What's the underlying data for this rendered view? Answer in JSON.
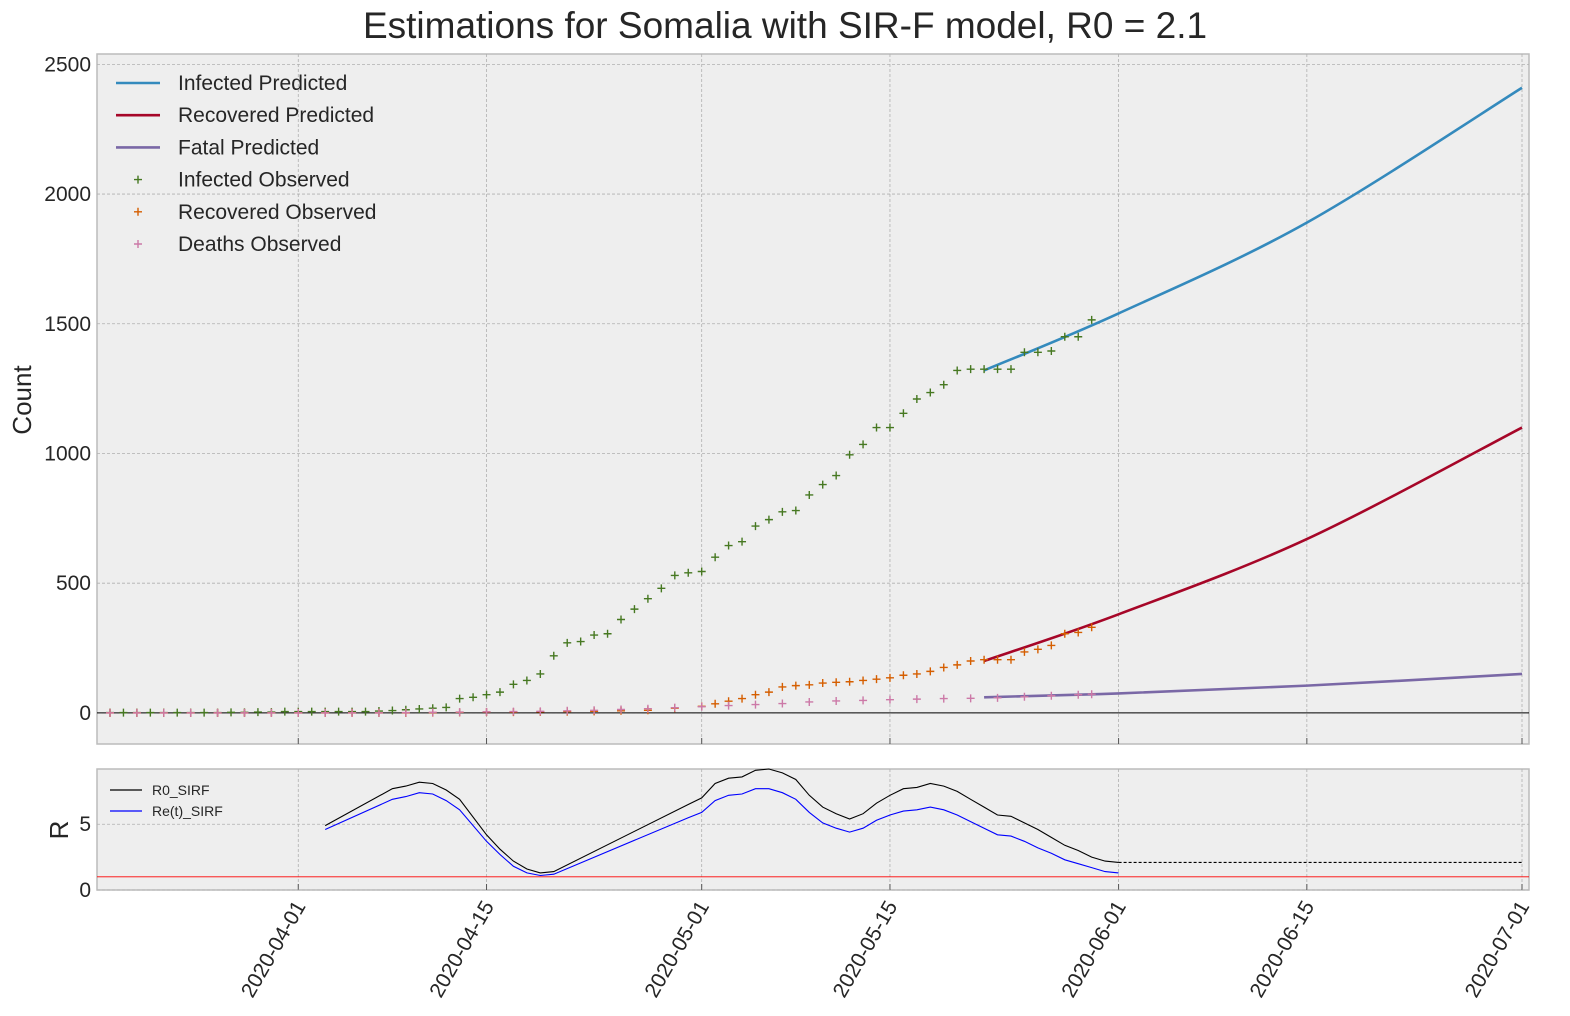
{
  "chart_data": [
    {
      "type": "line",
      "title": "Estimations for Somalia with SIR-F model, R0 = 2.1",
      "xlabel": "",
      "ylabel": "Count",
      "x_ticks": [
        "2020-04-01",
        "2020-04-15",
        "2020-05-01",
        "2020-05-15",
        "2020-06-01",
        "2020-06-15",
        "2020-07-01"
      ],
      "y_ticks": [
        "0",
        "500",
        "1000",
        "1500",
        "2000",
        "2500"
      ],
      "xlim": [
        "2020-03-18",
        "2020-07-01"
      ],
      "ylim": [
        -120,
        2540
      ],
      "grid": true,
      "legend_position": "top-left",
      "series": [
        {
          "name": "Infected Predicted",
          "kind": "line",
          "color": "#348abd",
          "x": [
            "2020-05-22",
            "2020-06-01",
            "2020-06-15",
            "2020-07-01"
          ],
          "values": [
            1320,
            1540,
            1890,
            2410
          ]
        },
        {
          "name": "Recovered Predicted",
          "kind": "line",
          "color": "#a60628",
          "x": [
            "2020-05-22",
            "2020-06-01",
            "2020-06-15",
            "2020-07-01"
          ],
          "values": [
            200,
            380,
            670,
            1100
          ]
        },
        {
          "name": "Fatal Predicted",
          "kind": "line",
          "color": "#7a68a6",
          "x": [
            "2020-05-22",
            "2020-06-01",
            "2020-06-15",
            "2020-07-01"
          ],
          "values": [
            60,
            75,
            105,
            150
          ]
        },
        {
          "name": "Infected Observed",
          "kind": "scatter",
          "color": "#467821",
          "x": [
            "2020-03-18",
            "2020-03-19",
            "2020-03-20",
            "2020-03-21",
            "2020-03-22",
            "2020-03-23",
            "2020-03-24",
            "2020-03-25",
            "2020-03-26",
            "2020-03-27",
            "2020-03-28",
            "2020-03-29",
            "2020-03-30",
            "2020-03-31",
            "2020-04-01",
            "2020-04-02",
            "2020-04-03",
            "2020-04-04",
            "2020-04-05",
            "2020-04-06",
            "2020-04-07",
            "2020-04-08",
            "2020-04-09",
            "2020-04-10",
            "2020-04-11",
            "2020-04-12",
            "2020-04-13",
            "2020-04-14",
            "2020-04-15",
            "2020-04-16",
            "2020-04-17",
            "2020-04-18",
            "2020-04-19",
            "2020-04-20",
            "2020-04-21",
            "2020-04-22",
            "2020-04-23",
            "2020-04-24",
            "2020-04-25",
            "2020-04-26",
            "2020-04-27",
            "2020-04-28",
            "2020-04-29",
            "2020-04-30",
            "2020-05-01",
            "2020-05-02",
            "2020-05-03",
            "2020-05-04",
            "2020-05-05",
            "2020-05-06",
            "2020-05-07",
            "2020-05-08",
            "2020-05-09",
            "2020-05-10",
            "2020-05-11",
            "2020-05-12",
            "2020-05-13",
            "2020-05-14",
            "2020-05-15",
            "2020-05-16",
            "2020-05-17",
            "2020-05-18",
            "2020-05-19",
            "2020-05-20",
            "2020-05-21",
            "2020-05-22",
            "2020-05-23",
            "2020-05-24",
            "2020-05-25",
            "2020-05-26",
            "2020-05-27",
            "2020-05-28",
            "2020-05-29",
            "2020-05-30"
          ],
          "values": [
            1,
            1,
            1,
            1,
            1,
            1,
            1,
            1,
            1,
            2,
            2,
            3,
            3,
            5,
            5,
            5,
            5,
            5,
            5,
            5,
            7,
            9,
            12,
            15,
            18,
            21,
            55,
            60,
            70,
            80,
            110,
            125,
            150,
            220,
            270,
            275,
            300,
            305,
            360,
            400,
            440,
            480,
            530,
            540,
            545,
            600,
            645,
            660,
            720,
            745,
            775,
            780,
            840,
            880,
            915,
            995,
            1035,
            1100,
            1100,
            1155,
            1210,
            1235,
            1265,
            1320,
            1325,
            1325,
            1325,
            1325,
            1390,
            1390,
            1395,
            1450,
            1450,
            1515
          ]
        },
        {
          "name": "Recovered Observed",
          "kind": "scatter",
          "color": "#d55e00",
          "x": [
            "2020-03-18",
            "2020-03-20",
            "2020-03-22",
            "2020-03-24",
            "2020-03-26",
            "2020-03-28",
            "2020-03-30",
            "2020-04-01",
            "2020-04-03",
            "2020-04-05",
            "2020-04-07",
            "2020-04-09",
            "2020-04-11",
            "2020-04-13",
            "2020-04-15",
            "2020-04-17",
            "2020-04-19",
            "2020-04-21",
            "2020-04-23",
            "2020-04-25",
            "2020-04-27",
            "2020-04-29",
            "2020-05-01",
            "2020-05-02",
            "2020-05-03",
            "2020-05-04",
            "2020-05-05",
            "2020-05-06",
            "2020-05-07",
            "2020-05-08",
            "2020-05-09",
            "2020-05-10",
            "2020-05-11",
            "2020-05-12",
            "2020-05-13",
            "2020-05-14",
            "2020-05-15",
            "2020-05-16",
            "2020-05-17",
            "2020-05-18",
            "2020-05-19",
            "2020-05-20",
            "2020-05-21",
            "2020-05-22",
            "2020-05-23",
            "2020-05-24",
            "2020-05-25",
            "2020-05-26",
            "2020-05-27",
            "2020-05-28",
            "2020-05-29",
            "2020-05-30"
          ],
          "values": [
            0,
            0,
            0,
            0,
            0,
            0,
            0,
            0,
            0,
            0,
            0,
            0,
            1,
            2,
            3,
            3,
            4,
            5,
            6,
            8,
            10,
            18,
            25,
            35,
            45,
            55,
            70,
            80,
            100,
            105,
            108,
            115,
            118,
            120,
            125,
            130,
            135,
            145,
            150,
            160,
            175,
            185,
            200,
            205,
            205,
            205,
            235,
            245,
            260,
            305,
            310,
            330
          ]
        },
        {
          "name": "Deaths Observed",
          "kind": "scatter",
          "color": "#cc79a7",
          "x": [
            "2020-03-18",
            "2020-03-20",
            "2020-03-22",
            "2020-03-24",
            "2020-03-26",
            "2020-03-28",
            "2020-03-30",
            "2020-04-01",
            "2020-04-03",
            "2020-04-05",
            "2020-04-07",
            "2020-04-09",
            "2020-04-11",
            "2020-04-13",
            "2020-04-15",
            "2020-04-17",
            "2020-04-19",
            "2020-04-21",
            "2020-04-23",
            "2020-04-25",
            "2020-04-27",
            "2020-04-29",
            "2020-05-01",
            "2020-05-03",
            "2020-05-05",
            "2020-05-07",
            "2020-05-09",
            "2020-05-11",
            "2020-05-13",
            "2020-05-15",
            "2020-05-17",
            "2020-05-19",
            "2020-05-21",
            "2020-05-23",
            "2020-05-25",
            "2020-05-27",
            "2020-05-29",
            "2020-05-30"
          ],
          "values": [
            0,
            0,
            0,
            0,
            0,
            0,
            0,
            0,
            0,
            0,
            0,
            1,
            2,
            3,
            4,
            5,
            6,
            8,
            10,
            13,
            16,
            20,
            24,
            28,
            32,
            36,
            42,
            46,
            48,
            51,
            53,
            55,
            56,
            58,
            62,
            66,
            70,
            72
          ]
        }
      ]
    },
    {
      "type": "line",
      "title": "",
      "xlabel": "",
      "ylabel": "R",
      "y_ticks": [
        "0",
        "5"
      ],
      "ylim": [
        0,
        9.2
      ],
      "grid": true,
      "legend_position": "top-left",
      "reference_line": {
        "value": 1,
        "color": "#ff0000"
      },
      "series": [
        {
          "name": "R0_SIRF",
          "kind": "line",
          "color": "#000000",
          "x": [
            "2020-04-03",
            "2020-04-08",
            "2020-04-09",
            "2020-04-10",
            "2020-04-11",
            "2020-04-12",
            "2020-04-13",
            "2020-04-15",
            "2020-04-16",
            "2020-04-17",
            "2020-04-18",
            "2020-04-19",
            "2020-04-20",
            "2020-04-30",
            "2020-05-01",
            "2020-05-02",
            "2020-05-03",
            "2020-05-04",
            "2020-05-05",
            "2020-05-06",
            "2020-05-07",
            "2020-05-08",
            "2020-05-09",
            "2020-05-10",
            "2020-05-11",
            "2020-05-12",
            "2020-05-13",
            "2020-05-14",
            "2020-05-15",
            "2020-05-16",
            "2020-05-17",
            "2020-05-18",
            "2020-05-19",
            "2020-05-20",
            "2020-05-21",
            "2020-05-22",
            "2020-05-23",
            "2020-05-24",
            "2020-05-25",
            "2020-05-26",
            "2020-05-27",
            "2020-05-28",
            "2020-05-29",
            "2020-05-30",
            "2020-05-31",
            "2020-06-01"
          ],
          "values": [
            4.9,
            7.7,
            7.9,
            8.2,
            8.1,
            7.6,
            6.9,
            4.2,
            3.1,
            2.2,
            1.6,
            1.3,
            1.4,
            6.5,
            7.0,
            8.1,
            8.5,
            8.6,
            9.1,
            9.2,
            8.9,
            8.4,
            7.2,
            6.3,
            5.8,
            5.4,
            5.8,
            6.6,
            7.2,
            7.7,
            7.8,
            8.1,
            7.9,
            7.5,
            6.9,
            6.3,
            5.7,
            5.6,
            5.1,
            4.6,
            4.0,
            3.4,
            3.0,
            2.5,
            2.2,
            2.1
          ]
        },
        {
          "name": "Re(t)_SIRF",
          "kind": "line",
          "color": "#0000ff",
          "x": [
            "2020-04-03",
            "2020-04-08",
            "2020-04-09",
            "2020-04-10",
            "2020-04-11",
            "2020-04-12",
            "2020-04-13",
            "2020-04-15",
            "2020-04-16",
            "2020-04-17",
            "2020-04-18",
            "2020-04-19",
            "2020-04-20",
            "2020-04-30",
            "2020-05-01",
            "2020-05-02",
            "2020-05-03",
            "2020-05-04",
            "2020-05-05",
            "2020-05-06",
            "2020-05-07",
            "2020-05-08",
            "2020-05-09",
            "2020-05-10",
            "2020-05-11",
            "2020-05-12",
            "2020-05-13",
            "2020-05-14",
            "2020-05-15",
            "2020-05-16",
            "2020-05-17",
            "2020-05-18",
            "2020-05-19",
            "2020-05-20",
            "2020-05-21",
            "2020-05-22",
            "2020-05-23",
            "2020-05-24",
            "2020-05-25",
            "2020-05-26",
            "2020-05-27",
            "2020-05-28",
            "2020-05-29",
            "2020-05-30",
            "2020-05-31",
            "2020-06-01"
          ],
          "values": [
            4.6,
            6.9,
            7.1,
            7.4,
            7.3,
            6.8,
            6.1,
            3.7,
            2.7,
            1.8,
            1.3,
            1.1,
            1.2,
            5.5,
            5.9,
            6.8,
            7.2,
            7.3,
            7.7,
            7.7,
            7.4,
            6.9,
            5.9,
            5.1,
            4.7,
            4.4,
            4.7,
            5.3,
            5.7,
            6.0,
            6.1,
            6.3,
            6.1,
            5.7,
            5.2,
            4.7,
            4.2,
            4.1,
            3.7,
            3.2,
            2.8,
            2.3,
            2.0,
            1.7,
            1.4,
            1.3
          ]
        },
        {
          "name": "R0_SIRF_projection",
          "kind": "dashed",
          "color": "#000000",
          "x": [
            "2020-06-01",
            "2020-07-01"
          ],
          "values": [
            2.1,
            2.1
          ]
        }
      ]
    }
  ]
}
